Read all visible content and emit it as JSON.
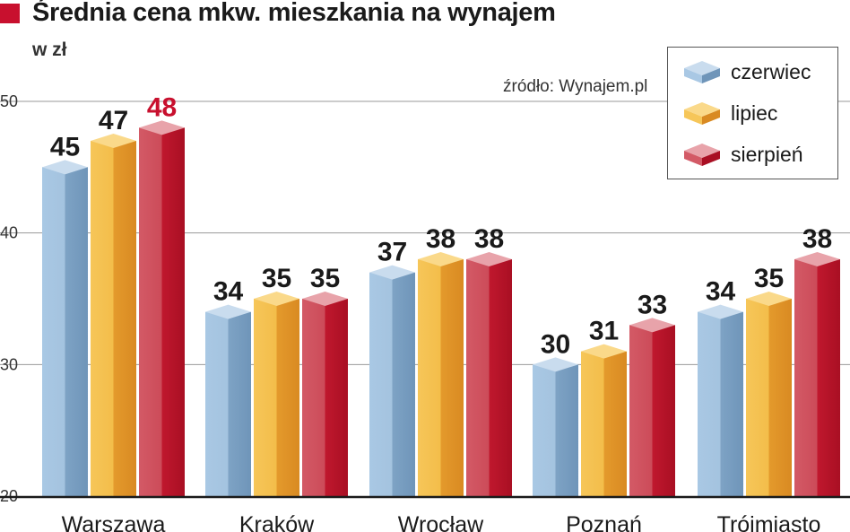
{
  "header": {
    "title": "Średnia cena mkw. mieszkania na wynajem",
    "unit": "w zł",
    "source": "źródło: Wynajem.pl"
  },
  "colors": {
    "title_mark": "#c8102e",
    "czerwiec": "#8fb3d4",
    "lipiec": "#f0b040",
    "sierpien": "#c8384a",
    "sierpien_label": "#c8102e"
  },
  "chart_data": {
    "type": "bar",
    "categories": [
      "Warszawa",
      "Kraków",
      "Wrocław",
      "Poznań",
      "Trójmiasto"
    ],
    "series": [
      {
        "name": "czerwiec",
        "values": [
          45,
          34,
          37,
          30,
          34
        ]
      },
      {
        "name": "lipiec",
        "values": [
          47,
          35,
          38,
          31,
          35
        ]
      },
      {
        "name": "sierpień",
        "values": [
          48,
          35,
          38,
          33,
          38
        ]
      }
    ],
    "ylim": [
      20,
      50
    ],
    "yticks": [
      20,
      30,
      40,
      50
    ],
    "grid": true,
    "legend": "top-right",
    "highlight": {
      "series": 2,
      "category": 0
    }
  }
}
